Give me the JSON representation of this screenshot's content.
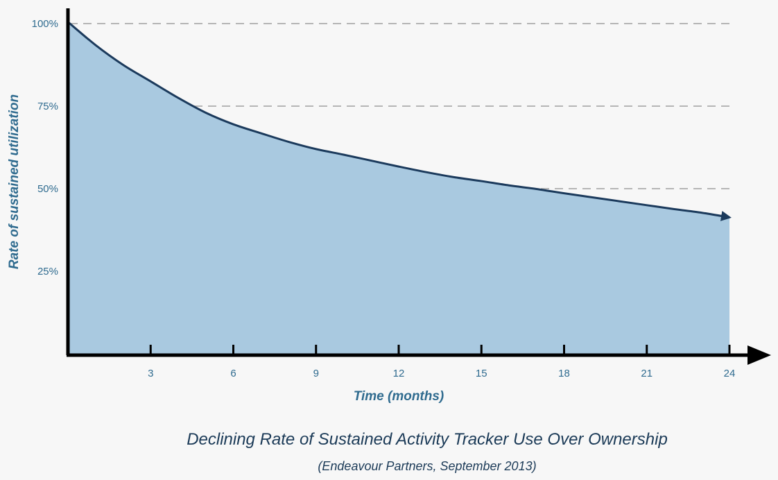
{
  "chart_data": {
    "type": "area",
    "title": "Declining Rate of Sustained Activity Tracker Use Over Ownership",
    "subtitle": "(Endeavour Partners, September 2013)",
    "xlabel": "Time (months)",
    "ylabel": "Rate of sustained utilization",
    "x": [
      0,
      1,
      2,
      3,
      4,
      5,
      6,
      7,
      8,
      9,
      10,
      11,
      12,
      13,
      14,
      15,
      16,
      17,
      18,
      19,
      20,
      21,
      22,
      23,
      24
    ],
    "series": [
      {
        "values": [
          100.5,
          93.5,
          87.5,
          82.5,
          77.5,
          73,
          69.5,
          66.8,
          64.2,
          62,
          60.3,
          58.5,
          56.7,
          55,
          53.5,
          52.3,
          51,
          49.9,
          48.6,
          47.4,
          46.2,
          45,
          43.8,
          42.7,
          41.3
        ]
      }
    ],
    "x_ticks": [
      "3",
      "6",
      "9",
      "12",
      "15",
      "18",
      "21",
      "24"
    ],
    "x_tick_values": [
      3,
      6,
      9,
      12,
      15,
      18,
      21,
      24
    ],
    "y_ticks": [
      "25%",
      "50%",
      "75%",
      "100%"
    ],
    "y_tick_values": [
      25,
      50,
      75,
      100
    ],
    "xlim": [
      0,
      24
    ],
    "ylim": [
      0,
      100
    ],
    "grid": "horizontal dashed",
    "colors": {
      "area": "#a9c9e0",
      "line": "#1b3a5c",
      "axis": "#000000",
      "grid": "#b5b5b5",
      "text": "#2f6b8f",
      "caption": "#1b3a57"
    }
  }
}
